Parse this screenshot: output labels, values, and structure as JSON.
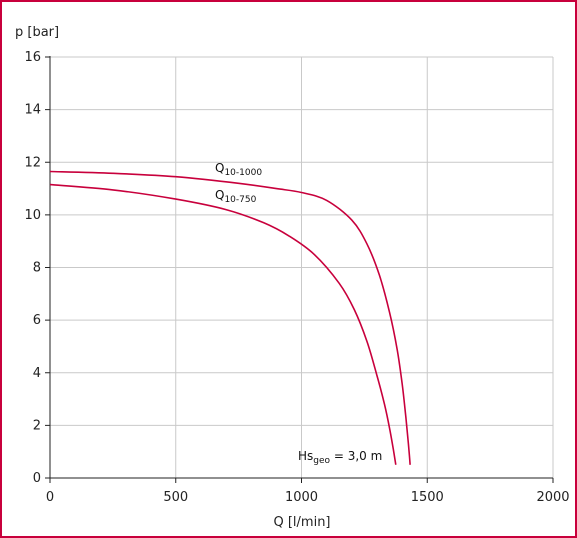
{
  "chart_data": {
    "type": "line",
    "xlabel": "Q [l/min]",
    "ylabel": "p [bar]",
    "xlim": [
      0,
      2000
    ],
    "ylim": [
      0,
      16
    ],
    "xticks": [
      0,
      500,
      1000,
      1500,
      2000
    ],
    "yticks": [
      0,
      2,
      4,
      6,
      8,
      10,
      12,
      14,
      16
    ],
    "grid": true,
    "series": [
      {
        "label_main": "Q",
        "label_sub": "10-1000",
        "color": "#c8003c",
        "x": [
          0,
          250,
          500,
          750,
          900,
          1000,
          1100,
          1200,
          1260,
          1310,
          1350,
          1380,
          1400,
          1415,
          1425,
          1432
        ],
        "y": [
          11.65,
          11.58,
          11.45,
          11.2,
          11.0,
          10.85,
          10.55,
          9.8,
          8.9,
          7.7,
          6.3,
          4.9,
          3.6,
          2.3,
          1.3,
          0.5
        ]
      },
      {
        "label_main": "Q",
        "label_sub": "10-750",
        "color": "#c8003c",
        "x": [
          0,
          250,
          500,
          700,
          850,
          950,
          1050,
          1150,
          1210,
          1260,
          1300,
          1330,
          1350,
          1365,
          1375
        ],
        "y": [
          11.15,
          10.95,
          10.6,
          10.2,
          9.7,
          9.2,
          8.5,
          7.4,
          6.4,
          5.2,
          3.9,
          2.8,
          1.9,
          1.1,
          0.5
        ]
      }
    ],
    "annotation": {
      "main": "Hs",
      "sub": "geo",
      "rest": " = 3,0 m"
    }
  }
}
